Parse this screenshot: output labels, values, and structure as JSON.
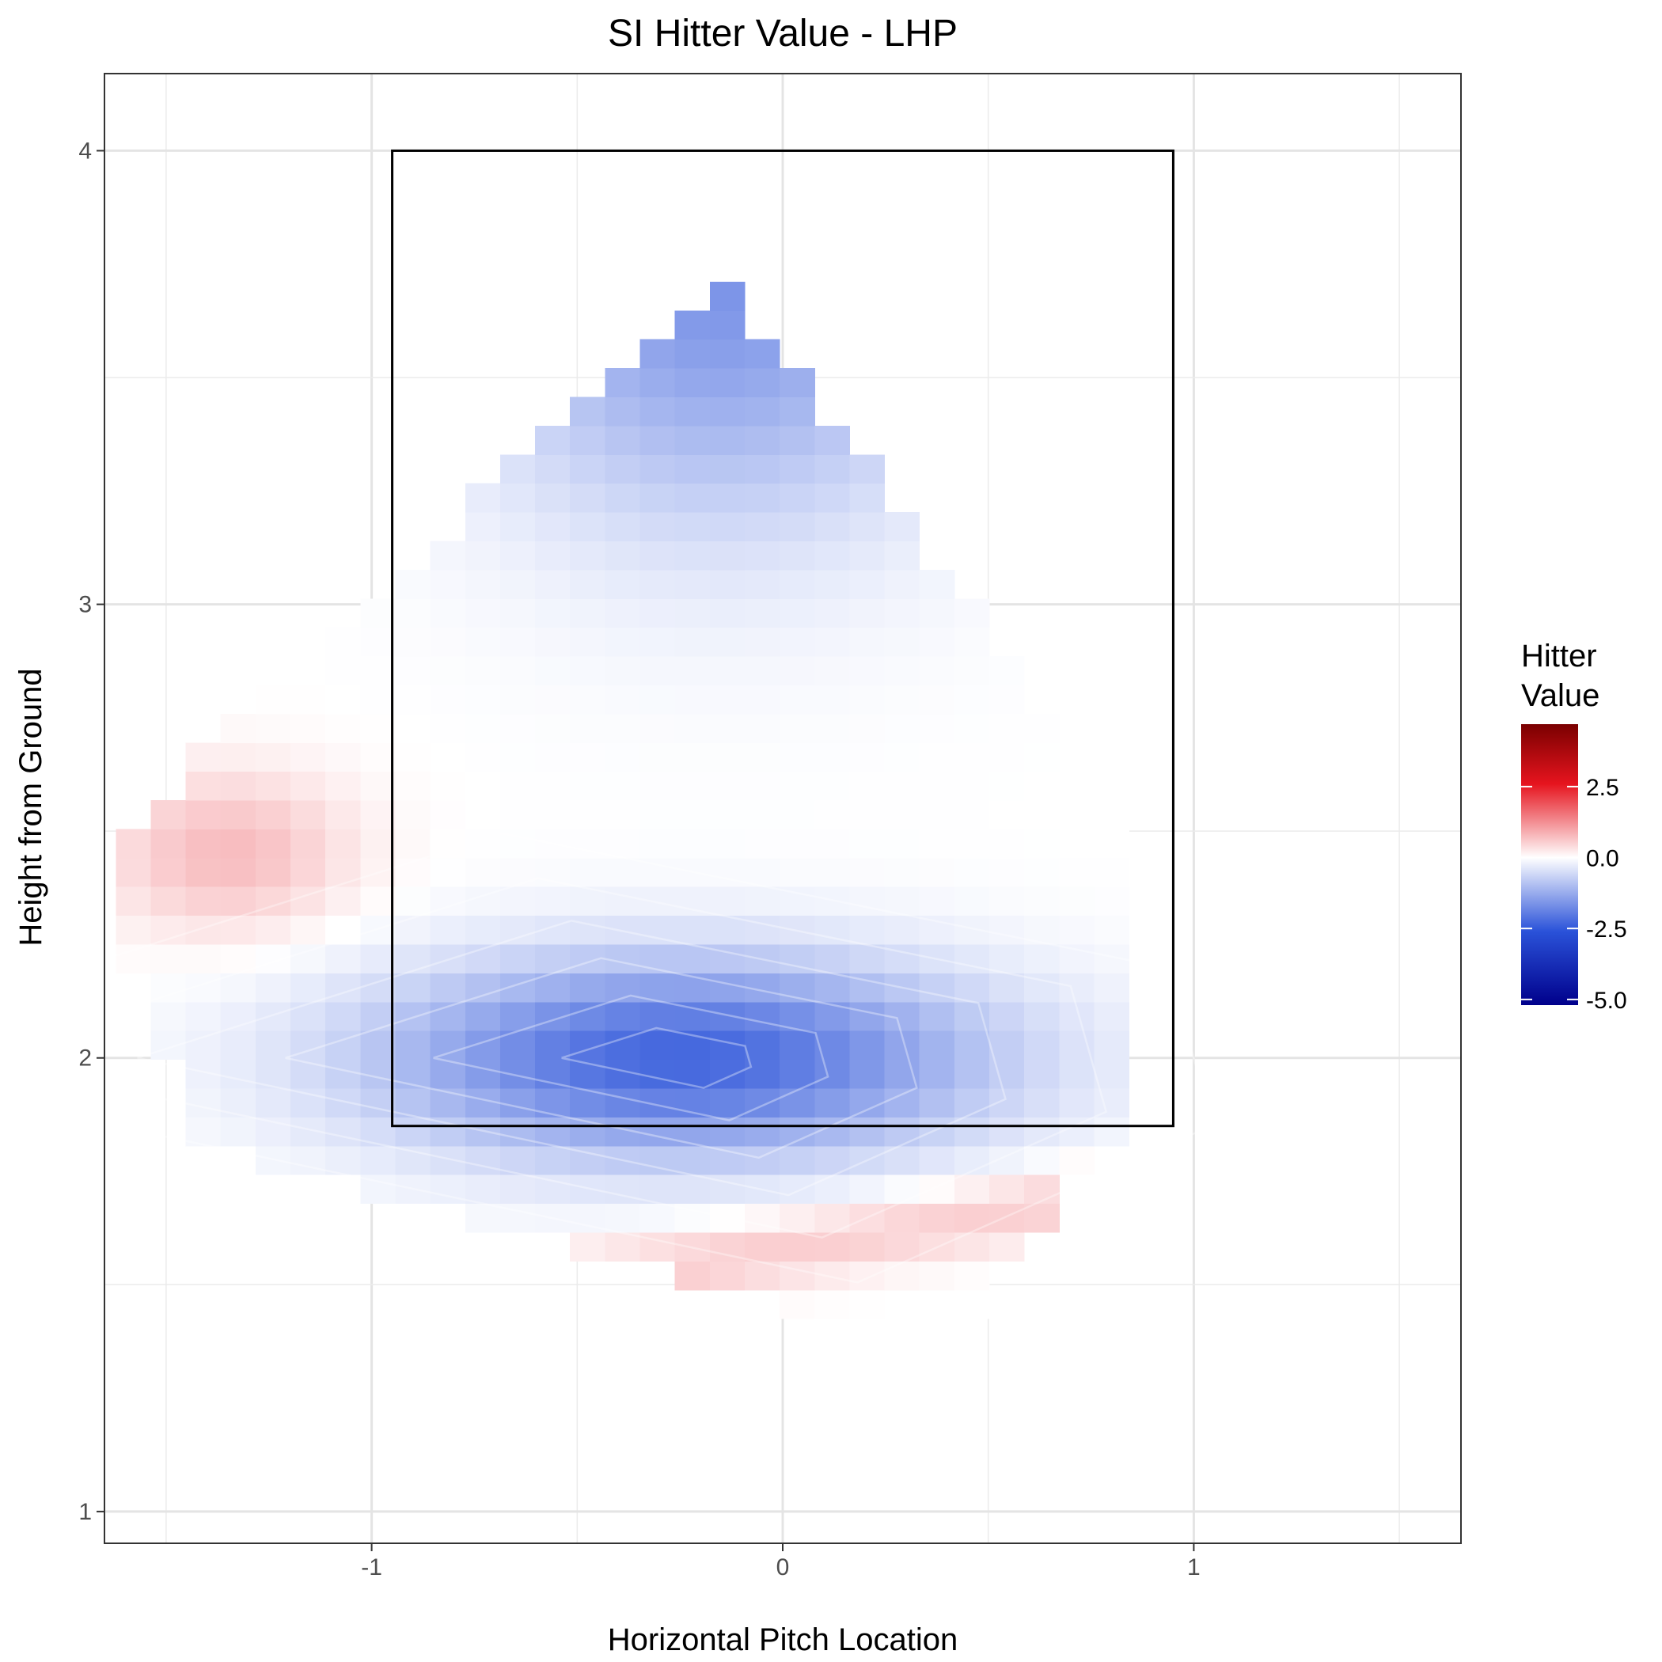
{
  "chart_data": {
    "type": "heatmap",
    "title": "SI Hitter Value - LHP",
    "xlabel": "Horizontal Pitch Location",
    "ylabel": "Height from Ground",
    "xlim": [
      -1.65,
      1.65
    ],
    "ylim": [
      0.93,
      4.17
    ],
    "x_ticks": [
      -1,
      0,
      1
    ],
    "x_tick_labels": [
      "-1",
      "0",
      "1"
    ],
    "y_ticks": [
      1,
      2,
      3,
      4
    ],
    "y_tick_labels": [
      "1",
      "2",
      "3",
      "4"
    ],
    "grid": true,
    "strike_zone": {
      "x": [
        -0.95,
        0.95
      ],
      "y": [
        1.85,
        4.0
      ]
    },
    "legend": {
      "title_lines": [
        "Hitter",
        "Value"
      ],
      "position": "right",
      "range": [
        -5.2,
        4.7
      ],
      "breaks": [
        2.5,
        0.0,
        -2.5,
        -5.0
      ],
      "break_labels": [
        "2.5",
        "0.0",
        "-2.5",
        "-5.0"
      ],
      "colors": [
        "#00008b",
        "#2a52d9",
        "#ffffff",
        "#e6141e",
        "#7a0000"
      ],
      "color_stops": [
        -5.2,
        -2.6,
        0.0,
        2.6,
        4.7
      ]
    },
    "heatmap": {
      "description_of_values": "estimated hitter value per location cell",
      "x_center": -0.25,
      "y_center": 2.0,
      "peak_value": -2.3,
      "top_apex": {
        "x": -0.15,
        "y": 3.73
      },
      "upper_right": {
        "x": 0.87,
        "y": 2.1
      },
      "left_edge": {
        "x": -1.65,
        "y": 2.3
      },
      "lower_apex": {
        "x": 0.38,
        "y": 1.35
      }
    }
  }
}
